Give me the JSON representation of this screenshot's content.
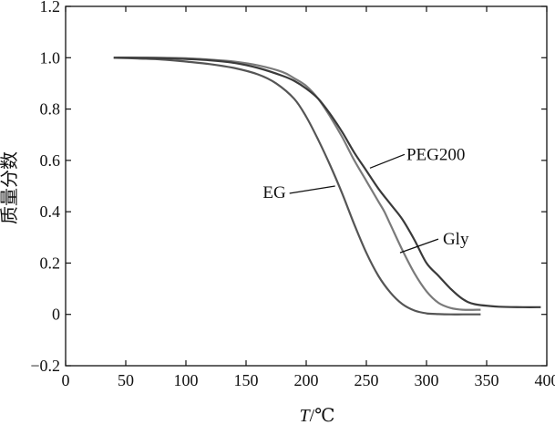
{
  "chart_data": {
    "type": "line",
    "xlabel_italic": "T",
    "xlabel_unit": "/℃",
    "ylabel": "质量分数",
    "xlim": [
      0,
      400
    ],
    "ylim": [
      -0.2,
      1.2
    ],
    "x_ticks": [
      0,
      50,
      100,
      150,
      200,
      250,
      300,
      350,
      400
    ],
    "x_tick_labels": [
      "0",
      "50",
      "100",
      "150",
      "200",
      "250",
      "300",
      "350",
      "400"
    ],
    "y_ticks": [
      -0.2,
      0,
      0.2,
      0.4,
      0.6,
      0.8,
      1.0,
      1.2
    ],
    "y_tick_labels": [
      "−0.2",
      "0",
      "0.2",
      "0.4",
      "0.6",
      "0.8",
      "1.0",
      "1.2"
    ],
    "grid": false,
    "legend": "none",
    "series": [
      {
        "name": "EG",
        "color": "#555555",
        "x": [
          40,
          60,
          80,
          100,
          120,
          140,
          160,
          175,
          190,
          200,
          210,
          220,
          230,
          240,
          250,
          260,
          270,
          280,
          290,
          300,
          310,
          320,
          330,
          345
        ],
        "y": [
          1.0,
          0.997,
          0.993,
          0.985,
          0.975,
          0.96,
          0.935,
          0.9,
          0.84,
          0.77,
          0.68,
          0.58,
          0.47,
          0.35,
          0.24,
          0.15,
          0.085,
          0.04,
          0.015,
          0.004,
          0.001,
          0.0,
          0.0,
          0.0
        ],
        "label_anchor": [
          224,
          0.5
        ]
      },
      {
        "name": "Gly",
        "color": "#7a7a7a",
        "x": [
          40,
          60,
          80,
          100,
          120,
          140,
          160,
          180,
          190,
          200,
          210,
          220,
          230,
          240,
          250,
          260,
          265,
          270,
          280,
          290,
          300,
          310,
          320,
          330,
          345
        ],
        "y": [
          1.0,
          1.0,
          1.0,
          0.998,
          0.993,
          0.985,
          0.97,
          0.945,
          0.92,
          0.89,
          0.84,
          0.77,
          0.69,
          0.6,
          0.52,
          0.44,
          0.4,
          0.35,
          0.25,
          0.16,
          0.09,
          0.045,
          0.025,
          0.018,
          0.018
        ],
        "label_anchor": [
          278,
          0.24
        ]
      },
      {
        "name": "PEG200",
        "color": "#3a3a3a",
        "x": [
          40,
          60,
          80,
          100,
          120,
          140,
          160,
          180,
          190,
          200,
          210,
          220,
          230,
          240,
          250,
          260,
          270,
          280,
          290,
          300,
          310,
          320,
          330,
          340,
          360,
          380,
          395
        ],
        "y": [
          1.0,
          1.0,
          0.998,
          0.995,
          0.99,
          0.98,
          0.96,
          0.93,
          0.91,
          0.88,
          0.84,
          0.78,
          0.71,
          0.63,
          0.56,
          0.49,
          0.43,
          0.37,
          0.29,
          0.2,
          0.15,
          0.1,
          0.06,
          0.04,
          0.03,
          0.028,
          0.028
        ],
        "label_anchor": [
          253,
          0.57
        ]
      }
    ]
  }
}
